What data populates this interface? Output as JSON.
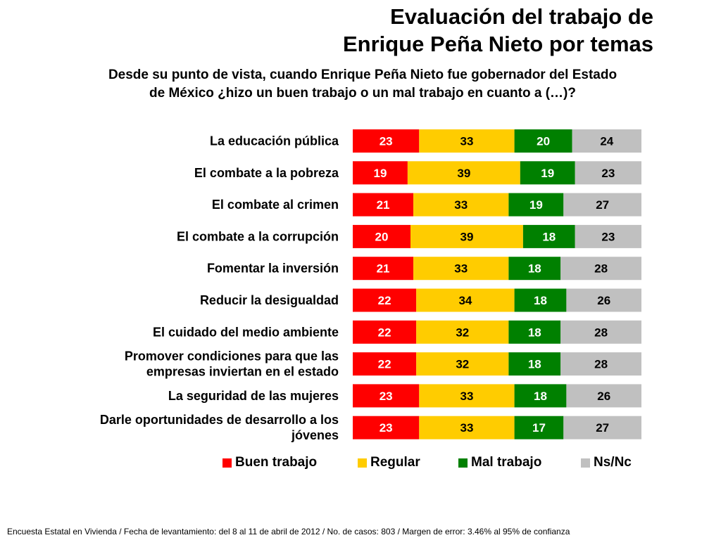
{
  "title_line1": "Evaluación del trabajo de",
  "title_line2": "Enrique Peña Nieto por temas",
  "question_line1": "Desde su punto de vista, cuando Enrique Peña Nieto fue gobernador del Estado",
  "question_line2": "de México ¿hizo un buen trabajo o un mal trabajo en cuanto a (…)?",
  "footer": "Encuesta Estatal en Vivienda / Fecha de levantamiento: del  8 al 11 de abril de 2012 / No. de casos: 803 / Margen de error: 3.46% al 95% de confianza",
  "chart_data": {
    "type": "bar",
    "orientation": "horizontal",
    "stacked": true,
    "title": "Evaluación del trabajo de Enrique Peña Nieto por temas",
    "categories": [
      [
        "La educación pública"
      ],
      [
        "El combate a la pobreza"
      ],
      [
        "El combate al crimen"
      ],
      [
        "El combate a la corrupción"
      ],
      [
        "Fomentar la inversión"
      ],
      [
        "Reducir la desigualdad"
      ],
      [
        "El cuidado del medio ambiente"
      ],
      [
        "Promover condiciones para que las",
        "empresas inviertan en el estado"
      ],
      [
        "La seguridad de las mujeres"
      ],
      [
        "Darle oportunidades de desarrollo a los",
        "jóvenes"
      ]
    ],
    "series": [
      {
        "name": "Buen trabajo",
        "color": "#ff0000",
        "label_color": "#ffffff",
        "values": [
          23,
          19,
          21,
          20,
          21,
          22,
          22,
          22,
          23,
          23
        ]
      },
      {
        "name": "Regular",
        "color": "#ffcc00",
        "label_color": "#000000",
        "values": [
          33,
          39,
          33,
          39,
          33,
          34,
          32,
          32,
          33,
          33
        ]
      },
      {
        "name": "Mal trabajo",
        "color": "#008000",
        "label_color": "#ffffff",
        "values": [
          20,
          19,
          19,
          18,
          18,
          18,
          18,
          18,
          18,
          17
        ]
      },
      {
        "name": "Ns/Nc",
        "color": "#c0c0c0",
        "label_color": "#000000",
        "values": [
          24,
          23,
          27,
          23,
          28,
          26,
          28,
          28,
          26,
          27
        ]
      }
    ],
    "legend_position": "bottom",
    "grid": false,
    "axis_max": 100
  }
}
